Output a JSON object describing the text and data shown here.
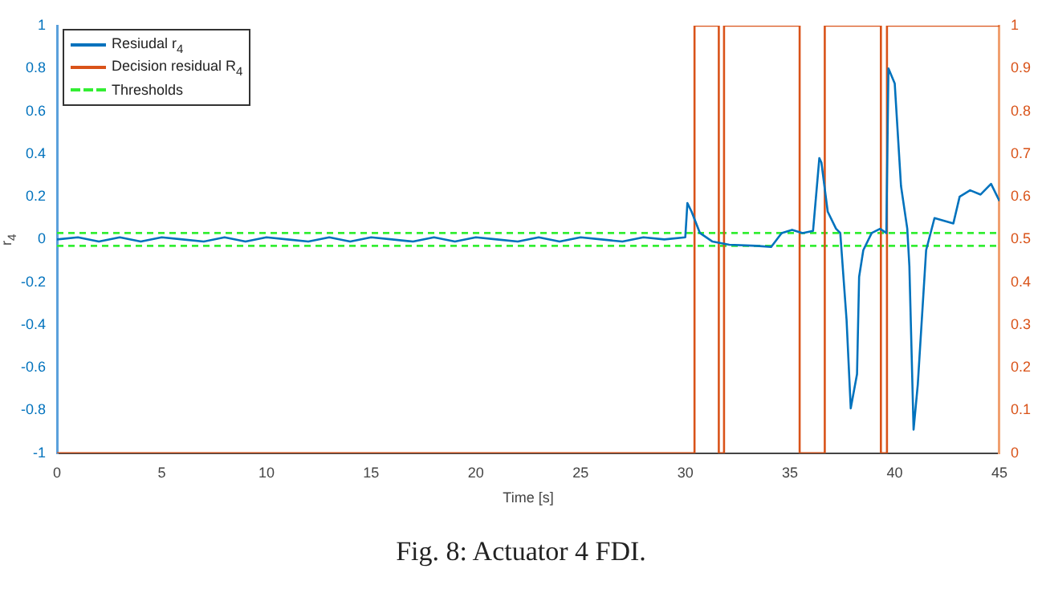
{
  "chart_data": {
    "type": "line",
    "xlabel": "Time [s]",
    "ylabel": "r$_{4}$",
    "annotations": [
      "Fig. 8: Actuator 4 FDI."
    ],
    "xlim": [
      0,
      45
    ],
    "xticks": [
      0,
      5,
      10,
      15,
      20,
      25,
      30,
      35,
      40,
      45
    ],
    "ylim": [
      -1,
      1
    ],
    "yticks": [
      -1,
      -0.8,
      -0.6,
      -0.4,
      -0.2,
      0,
      0.2,
      0.4,
      0.6,
      0.8,
      1
    ],
    "y2lim": [
      0,
      1
    ],
    "y2ticks": [
      0,
      0.1,
      0.2,
      0.3,
      0.4,
      0.5,
      0.6,
      0.7,
      0.8,
      0.9,
      1
    ],
    "grid": false,
    "legend": "top left",
    "marker": "none",
    "series": [
      {
        "name": "Resiudal r$_{4}$",
        "color": "#0072bd",
        "line_style": "solid",
        "x": [
          0,
          1,
          2,
          3,
          4,
          5,
          6,
          7,
          8,
          9,
          10,
          11,
          12,
          13,
          14,
          15,
          16,
          17,
          18,
          19,
          20,
          21,
          22,
          23,
          24,
          25,
          26,
          27,
          28,
          29,
          30,
          30.1,
          30.3,
          30.7,
          31.3,
          32.1,
          33.4,
          34.1,
          34.6,
          35.1,
          35.6,
          36.1,
          36.4,
          36.5,
          36.8,
          37.2,
          37.4,
          37.7,
          37.9,
          38.2,
          38.3,
          38.5,
          38.9,
          39.3,
          39.6,
          39.7,
          40,
          40.3,
          40.6,
          40.7,
          40.9,
          41.1,
          41.5,
          41.9,
          42.8,
          43.1,
          43.6,
          44.1,
          44.6,
          45
        ],
        "values": [
          0,
          0.01,
          -0.01,
          0.01,
          -0.01,
          0.01,
          0,
          -0.01,
          0.01,
          -0.01,
          0.01,
          0,
          -0.01,
          0.01,
          -0.01,
          0.01,
          0,
          -0.01,
          0.01,
          -0.01,
          0.01,
          0,
          -0.01,
          0.01,
          -0.01,
          0.01,
          0,
          -0.01,
          0.01,
          0,
          0.01,
          0.17,
          0.13,
          0.03,
          -0.01,
          -0.025,
          -0.03,
          -0.035,
          0.03,
          0.045,
          0.03,
          0.04,
          0.38,
          0.36,
          0.13,
          0.05,
          0.03,
          -0.375,
          -0.79,
          -0.63,
          -0.175,
          -0.05,
          0.03,
          0.05,
          0.03,
          0.8,
          0.73,
          0.25,
          0.05,
          -0.125,
          -0.89,
          -0.68,
          -0.05,
          0.1,
          0.075,
          0.2,
          0.23,
          0.21,
          0.26,
          0.18
        ]
      },
      {
        "name": "Decision residual R$_{4}$",
        "color": "#d95319",
        "line_style": "solid",
        "axis": "y2",
        "x": [
          0,
          30.44,
          30.44,
          31.6,
          31.6,
          31.85,
          31.85,
          35.46,
          35.46,
          36.66,
          36.66,
          39.34,
          39.34,
          39.63,
          39.63,
          45
        ],
        "values": [
          0,
          0,
          1,
          1,
          0,
          0,
          1,
          1,
          0,
          0,
          1,
          1,
          0,
          0,
          1,
          1
        ]
      },
      {
        "name": "Thresholds",
        "color": "#33ee33",
        "line_style": "dashed",
        "x": [
          0,
          45
        ],
        "values": [
          0.03,
          0.03
        ]
      },
      {
        "color": "#33ee33",
        "line_style": "dashed",
        "x": [
          0,
          45
        ],
        "values": [
          -0.03,
          -0.03
        ]
      }
    ]
  }
}
